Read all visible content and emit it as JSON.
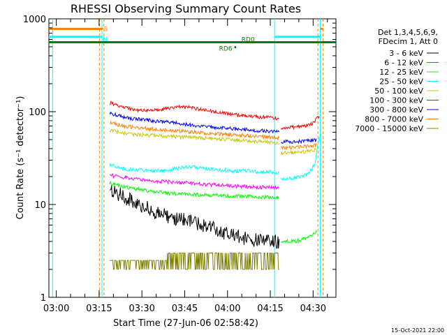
{
  "chart_data": {
    "type": "line",
    "title": "RHESSI Observing Summary Count Rates",
    "xlabel": "Start Time (27-Jun-06 02:58:42)",
    "ylabel": "Count Rate (s⁻¹ detector⁻¹)",
    "yscale": "log",
    "ylim": [
      1,
      1000
    ],
    "xlim_min": [
      -1.3,
      99.3
    ],
    "x_ticks": [
      {
        "t": 1.3,
        "label": "03:00"
      },
      {
        "t": 16.3,
        "label": "03:15"
      },
      {
        "t": 31.3,
        "label": "03:30"
      },
      {
        "t": 46.3,
        "label": "03:45"
      },
      {
        "t": 61.3,
        "label": "04:00"
      },
      {
        "t": 76.3,
        "label": "04:15"
      },
      {
        "t": 91.3,
        "label": "04:30"
      }
    ],
    "y_ticks": [
      {
        "v": 1,
        "label": "1"
      },
      {
        "v": 10,
        "label": "10"
      },
      {
        "v": 100,
        "label": "100"
      },
      {
        "v": 1000,
        "label": "1000"
      }
    ],
    "legend_header": [
      "Det 1,3,4,5,6,9,",
      "FDecim 1, Att 0"
    ],
    "series": [
      {
        "name": "3 - 6 keV",
        "color": "#000000",
        "t": [
          20,
          24,
          28,
          32,
          36,
          40,
          44,
          48,
          52,
          56,
          60,
          64,
          68,
          72,
          76,
          79.4
        ],
        "values": [
          14.2,
          12.6,
          10.8,
          9.6,
          8.2,
          7.6,
          7.0,
          6.6,
          6.0,
          5.5,
          5.0,
          4.6,
          4.3,
          4.1,
          4.0,
          3.9
        ]
      },
      {
        "name": "6 - 12 keV",
        "color": "#ff00ff",
        "t": [
          20,
          25,
          30,
          35,
          40,
          45,
          50,
          55,
          60,
          64,
          68,
          72,
          76,
          79.4
        ],
        "values": [
          20.6,
          19.6,
          18.8,
          18.0,
          17.6,
          17.2,
          16.8,
          16.4,
          16.0,
          15.8,
          15.6,
          15.4,
          15.3,
          15.2
        ]
      },
      {
        "name": "12 - 25 keV",
        "color": "#00ff00",
        "t": [
          20,
          24,
          28,
          32,
          36,
          40,
          44,
          48,
          52,
          56,
          60,
          64,
          68,
          72,
          76,
          79.4,
          80,
          85,
          90,
          92.5
        ],
        "values": [
          17.0,
          15.8,
          15.0,
          14.3,
          13.7,
          13.3,
          13.0,
          12.9,
          12.7,
          12.6,
          12.4,
          12.3,
          12.1,
          12.0,
          11.9,
          11.8,
          4.0,
          4.0,
          4.4,
          5.2
        ]
      },
      {
        "name": "25 - 50 keV",
        "color": "#00ffff",
        "t": [
          20,
          24,
          28,
          32,
          36,
          40,
          44,
          48,
          52,
          56,
          60,
          64,
          68,
          72,
          76,
          79.4,
          80,
          84,
          88,
          90,
          92,
          93.5
        ],
        "values": [
          27.0,
          24.5,
          23.5,
          23.5,
          23.0,
          23.5,
          24.5,
          25.5,
          24.8,
          24.0,
          23.5,
          23.0,
          23.0,
          22.5,
          22.3,
          22.0,
          19.0,
          19.0,
          20.5,
          22.0,
          28.0,
          55.0
        ]
      },
      {
        "name": "50 - 100 keV",
        "color": "#c8c800",
        "t": [
          20,
          25,
          30,
          35,
          40,
          45,
          50,
          55,
          60,
          64,
          68,
          72,
          76,
          79.4,
          80,
          84,
          88,
          92.5
        ],
        "values": [
          63.0,
          58.5,
          56.5,
          55.5,
          54.5,
          53.5,
          52.5,
          51.5,
          50.5,
          49.5,
          48.5,
          47.5,
          46.5,
          45.5,
          36.0,
          36.0,
          37.0,
          39.0
        ]
      },
      {
        "name": "100 - 300 keV",
        "color": "#ff0000",
        "t": [
          20,
          24,
          28,
          32,
          36,
          40,
          44,
          48,
          52,
          56,
          60,
          64,
          68,
          72,
          76,
          79.4,
          80,
          84,
          88,
          91,
          93.5
        ],
        "values": [
          125.0,
          112.0,
          106.0,
          103.0,
          104.0,
          108.0,
          112.0,
          111.0,
          106.0,
          101.0,
          96.0,
          93.0,
          90.0,
          88.0,
          86.0,
          84.0,
          67.0,
          68.0,
          70.0,
          74.0,
          90.0
        ]
      },
      {
        "name": "300 - 800 keV",
        "color": "#0000ff",
        "t": [
          20,
          25,
          30,
          35,
          40,
          45,
          50,
          55,
          60,
          64,
          68,
          72,
          76,
          79.4,
          80,
          84,
          88,
          92.5
        ],
        "values": [
          96.0,
          87.0,
          83.0,
          80.0,
          77.0,
          74.0,
          71.0,
          68.5,
          66.5,
          65.0,
          64.0,
          62.5,
          61.5,
          60.5,
          47.5,
          47.5,
          48.0,
          49.5
        ]
      },
      {
        "name": "800 - 7000 keV",
        "color": "#ff8000",
        "t": [
          20,
          25,
          30,
          35,
          40,
          45,
          50,
          55,
          60,
          64,
          68,
          72,
          76,
          79.4,
          80,
          84,
          88,
          92.5
        ],
        "values": [
          76.0,
          70.0,
          67.0,
          65.0,
          63.0,
          61.5,
          60.0,
          58.5,
          57.5,
          56.0,
          55.0,
          54.0,
          53.0,
          52.0,
          41.0,
          41.0,
          42.0,
          43.5
        ]
      },
      {
        "name": "7000 - 15000 keV",
        "color": "#808000",
        "t": [
          20,
          25,
          30,
          35,
          40,
          45,
          50,
          55,
          60,
          64,
          68,
          72,
          76,
          79.4
        ],
        "values": [
          2.5,
          2.5,
          2.0,
          2.5,
          3.0,
          3.0,
          3.0,
          3.0,
          3.0,
          3.0,
          3.0,
          3.0,
          3.0,
          3.0
        ]
      }
    ],
    "flags": [
      {
        "name": "S",
        "color": "#ff8000",
        "level": 780,
        "segments": [
          [
            -1.3,
            17.7
          ],
          [
            93.8,
            94.8
          ]
        ]
      },
      {
        "name": "N",
        "color": "#00ffff",
        "level": 640,
        "segments": [
          [
            -1.3,
            17.3
          ],
          [
            77.8,
            93.8
          ]
        ]
      },
      {
        "name": "RD0",
        "color": "#008000",
        "level": 560,
        "segments": [
          [
            -1.3,
            99.3
          ]
        ]
      },
      {
        "name": "RD6",
        "color": "#008000",
        "level": 495,
        "segments": [
          [
            63.7,
            64.3
          ]
        ]
      }
    ],
    "vertical_lines": [
      {
        "t": 0,
        "color": "#00ffff",
        "style": "solid"
      },
      {
        "t": 17.3,
        "color": "#00ffff",
        "style": "solid"
      },
      {
        "t": 16.5,
        "color": "#ff8000",
        "style": "dashed"
      },
      {
        "t": 18.0,
        "color": "#ff8000",
        "style": "dashed"
      },
      {
        "t": 77.8,
        "color": "#00ffff",
        "style": "solid"
      },
      {
        "t": 93.8,
        "color": "#00ffff",
        "style": "solid"
      },
      {
        "t": 93.0,
        "color": "#ff8000",
        "style": "dashed"
      },
      {
        "t": 94.8,
        "color": "#ff8000",
        "style": "dashed"
      }
    ],
    "timestamp": "15-Oct-2021 22:00"
  }
}
